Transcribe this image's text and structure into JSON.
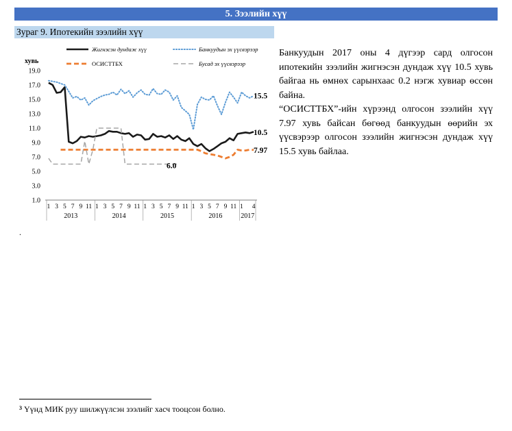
{
  "section": {
    "title": "5. Зээлийн хүү"
  },
  "figure": {
    "caption": "Зураг 9. Ипотекийн зээлийн хүү"
  },
  "chart_data": {
    "type": "line",
    "ylabel": "хувь",
    "ylim": [
      1.0,
      19.0
    ],
    "yticks": [
      "19.0",
      "17.0",
      "15.0",
      "13.0",
      "11.0",
      "9.0",
      "7.0",
      "5.0",
      "3.0",
      "1.0"
    ],
    "x": [
      "2013-01",
      "2013-02",
      "2013-03",
      "2013-04",
      "2013-05",
      "2013-06",
      "2013-07",
      "2013-08",
      "2013-09",
      "2013-10",
      "2013-11",
      "2013-12",
      "2014-01",
      "2014-02",
      "2014-03",
      "2014-04",
      "2014-05",
      "2014-06",
      "2014-07",
      "2014-08",
      "2014-09",
      "2014-10",
      "2014-11",
      "2014-12",
      "2015-01",
      "2015-02",
      "2015-03",
      "2015-04",
      "2015-05",
      "2015-06",
      "2015-07",
      "2015-08",
      "2015-09",
      "2015-10",
      "2015-11",
      "2015-12",
      "2016-01",
      "2016-02",
      "2016-03",
      "2016-04",
      "2016-05",
      "2016-06",
      "2016-07",
      "2016-08",
      "2016-09",
      "2016-10",
      "2016-11",
      "2016-12",
      "2017-01",
      "2017-02",
      "2017-03",
      "2017-04"
    ],
    "x_tick_labels": [
      "1",
      "3",
      "5",
      "7",
      "9",
      "11",
      "1",
      "3",
      "5",
      "7",
      "9",
      "11",
      "1",
      "3",
      "5",
      "7",
      "9",
      "11",
      "1",
      "3",
      "5",
      "7",
      "9",
      "11",
      "1",
      "4"
    ],
    "x_tick_positions": [
      0,
      2,
      4,
      6,
      8,
      10,
      12,
      14,
      16,
      18,
      20,
      22,
      24,
      26,
      28,
      30,
      32,
      34,
      36,
      38,
      40,
      42,
      44,
      46,
      48,
      51
    ],
    "year_labels": [
      {
        "label": "2013",
        "center": 5.5
      },
      {
        "label": "2014",
        "center": 17.5
      },
      {
        "label": "2015",
        "center": 29.5
      },
      {
        "label": "2016",
        "center": 41.5
      },
      {
        "label": "2017",
        "center": 49.5
      }
    ],
    "legend": [
      "Жигнэсэн дундаж хүү",
      "Банкуудын эх үүсвэрээр",
      "ОСИСТТБХ",
      "Бусад эх үүсвэрээр"
    ],
    "legend_position": "top",
    "series": [
      {
        "name": "Жигнэсэн дундаж хүү",
        "color": "#1a1a1a",
        "style": "solid",
        "values": [
          17.3,
          17.0,
          15.9,
          16.0,
          16.7,
          9.1,
          8.9,
          9.2,
          9.8,
          9.7,
          9.9,
          9.8,
          9.9,
          10.0,
          10.2,
          10.6,
          10.5,
          10.5,
          10.3,
          10.2,
          10.3,
          9.8,
          10.1,
          10.0,
          9.4,
          9.5,
          10.2,
          9.8,
          9.9,
          9.7,
          10.0,
          9.5,
          9.9,
          9.4,
          9.2,
          9.6,
          8.8,
          8.5,
          8.8,
          8.2,
          7.8,
          8.1,
          8.5,
          8.9,
          9.1,
          9.6,
          9.3,
          10.2,
          10.3,
          10.4,
          10.3,
          10.5
        ]
      },
      {
        "name": "Банкуудын эх үүсвэрээр",
        "color": "#5b9bd5",
        "style": "dotted",
        "values": [
          17.6,
          17.5,
          17.4,
          17.2,
          17.0,
          16.1,
          15.2,
          15.4,
          14.9,
          15.2,
          14.2,
          14.8,
          15.1,
          15.4,
          15.6,
          15.7,
          16.0,
          15.6,
          16.4,
          15.8,
          16.2,
          15.3,
          15.9,
          16.3,
          15.7,
          15.6,
          16.5,
          15.8,
          15.7,
          16.3,
          16.0,
          14.9,
          15.5,
          13.9,
          13.4,
          12.9,
          10.8,
          14.3,
          15.3,
          15.0,
          14.9,
          15.5,
          14.1,
          12.9,
          14.6,
          16.0,
          15.3,
          14.5,
          16.0,
          15.5,
          15.2,
          15.5
        ]
      },
      {
        "name": "ОСИСТТБХ",
        "color": "#ed7d31",
        "style": "dashed",
        "values": [
          null,
          null,
          null,
          8.0,
          8.0,
          8.0,
          8.0,
          8.0,
          8.0,
          8.0,
          8.0,
          8.0,
          8.0,
          8.0,
          8.0,
          8.0,
          8.0,
          8.0,
          8.0,
          8.0,
          8.0,
          8.0,
          8.0,
          8.0,
          8.0,
          8.0,
          8.0,
          8.0,
          8.0,
          8.0,
          8.0,
          8.0,
          8.0,
          8.0,
          8.0,
          8.0,
          8.0,
          8.0,
          7.8,
          7.5,
          7.4,
          7.3,
          7.2,
          7.0,
          6.8,
          7.0,
          7.3,
          8.0,
          7.9,
          7.9,
          8.0,
          7.97
        ]
      },
      {
        "name": "Бусад эх үүсвэрээр",
        "color": "#a6a6a6",
        "style": "dashed",
        "values": [
          6.8,
          6.0,
          6.0,
          6.0,
          6.0,
          6.0,
          6.0,
          6.0,
          6.0,
          9.2,
          6.0,
          8.0,
          11.0,
          11.0,
          11.0,
          11.0,
          11.0,
          11.0,
          11.0,
          6.0,
          6.0,
          6.0,
          6.0,
          6.0,
          6.0,
          6.0,
          6.0,
          6.0,
          6.0,
          6.0,
          6.0,
          6.0,
          6.0,
          null,
          null,
          null,
          null,
          null,
          null,
          null,
          null,
          null,
          null,
          null,
          null,
          null,
          null,
          null,
          null,
          null,
          null,
          null
        ]
      }
    ],
    "end_labels": [
      {
        "text": "15.5",
        "series": 1
      },
      {
        "text": "10.5",
        "series": 0
      },
      {
        "text": "7.97",
        "series": 2
      },
      {
        "text": "6.0",
        "series": 3
      }
    ],
    "grid": false
  },
  "text": {
    "paragraph1": "Банкуудын 2017 оны 4 дүгээр сард олгосон ипотекийн зээлийн жигнэсэн дундаж хүү 10.5 хувь байгаа нь өмнөх сарынхаас 0.2 нэгж хувиар өссөн байна.",
    "paragraph2": "“ОСИСТТБХ”-ийн хүрээнд олгосон зээлийн хүү 7.97 хувь байсан бөгөөд банкуудын өөрийн эх үүсвэрээр олгосон зээлийн жигнэсэн дундаж хүү 15.5 хувь байлаа."
  },
  "stray_mark": ".",
  "footnote": {
    "marker": "3",
    "text": "Үүнд МИК руу шилжүүлсэн зээлийг хасч тооцсон болно."
  }
}
